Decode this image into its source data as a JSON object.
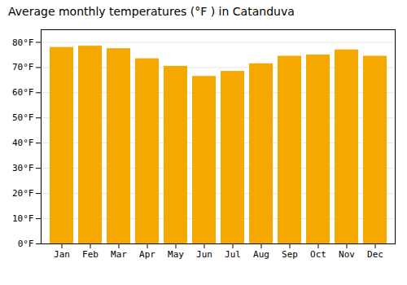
{
  "chart_data": {
    "type": "bar",
    "title": "Average monthly temperatures (°F ) in Catanduva",
    "categories": [
      "Jan",
      "Feb",
      "Mar",
      "Apr",
      "May",
      "Jun",
      "Jul",
      "Aug",
      "Sep",
      "Oct",
      "Nov",
      "Dec"
    ],
    "values": [
      78,
      78.5,
      77.5,
      73.5,
      70.5,
      66.5,
      68.5,
      71.5,
      74.5,
      75,
      77,
      74.5
    ],
    "color": "#F5A800",
    "ylim": [
      0,
      85
    ],
    "yticks": [
      {
        "value": 0,
        "label": "0°F"
      },
      {
        "value": 10,
        "label": "10°F"
      },
      {
        "value": 20,
        "label": "20°F"
      },
      {
        "value": 30,
        "label": "30°F"
      },
      {
        "value": 40,
        "label": "40°F"
      },
      {
        "value": 50,
        "label": "50°F"
      },
      {
        "value": 60,
        "label": "60°F"
      },
      {
        "value": 70,
        "label": "70°F"
      },
      {
        "value": 80,
        "label": "80°F"
      }
    ],
    "grid": true
  }
}
